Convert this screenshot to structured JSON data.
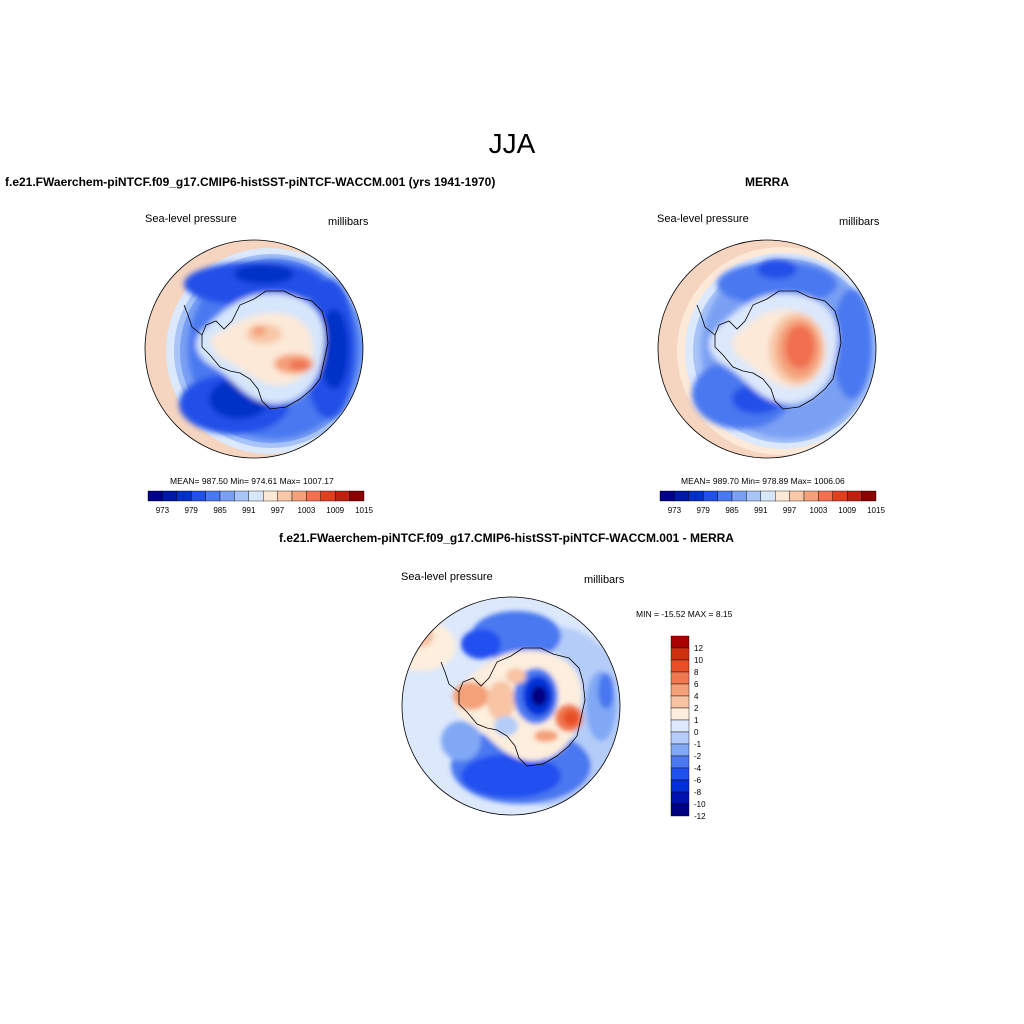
{
  "page_title": "JJA",
  "panels": [
    {
      "title": "f.e21.FWaerchem-piNTCF.f09_g17.CMIP6-histSST-piNTCF-WACCM.001 (yrs 1941-1970)",
      "left_label": "Sea-level pressure",
      "right_label": "millibars",
      "stats": "MEAN= 987.50   Min= 974.61   Max= 1007.17"
    },
    {
      "title": "MERRA",
      "left_label": "Sea-level pressure",
      "right_label": "millibars",
      "stats": "MEAN= 989.70   Min= 978.89   Max= 1006.06"
    },
    {
      "title": "f.e21.FWaerchem-piNTCF.f09_g17.CMIP6-histSST-piNTCF-WACCM.001 - MERRA",
      "left_label": "Sea-level pressure",
      "right_label": "millibars",
      "stats": "MIN = -15.52  MAX =   8.15"
    }
  ],
  "colorbar_abs": {
    "colors": [
      "#00008b",
      "#0018a8",
      "#0030c8",
      "#2050e8",
      "#4a78f0",
      "#7aa0f4",
      "#a8c4f8",
      "#d6e6fb",
      "#fce9d8",
      "#f8c8a8",
      "#f4a07a",
      "#f07050",
      "#e04020",
      "#c02010",
      "#8b0000"
    ],
    "tick_labels": [
      "973",
      "979",
      "985",
      "991",
      "997",
      "1003",
      "1009",
      "1015"
    ]
  },
  "colorbar_diff": {
    "colors": [
      "#000080",
      "#0010b0",
      "#0030d8",
      "#2050f0",
      "#4a78f0",
      "#80a8f4",
      "#b4ccf8",
      "#dce8fb",
      "#fdeedd",
      "#f8c4a4",
      "#f4a078",
      "#f07850",
      "#e85028",
      "#d03010",
      "#a80000"
    ],
    "tick_labels": [
      "12",
      "10",
      "8",
      "6",
      "4",
      "2",
      "1",
      "0",
      "-1",
      "-2",
      "-4",
      "-6",
      "-8",
      "-10",
      "-12"
    ]
  }
}
